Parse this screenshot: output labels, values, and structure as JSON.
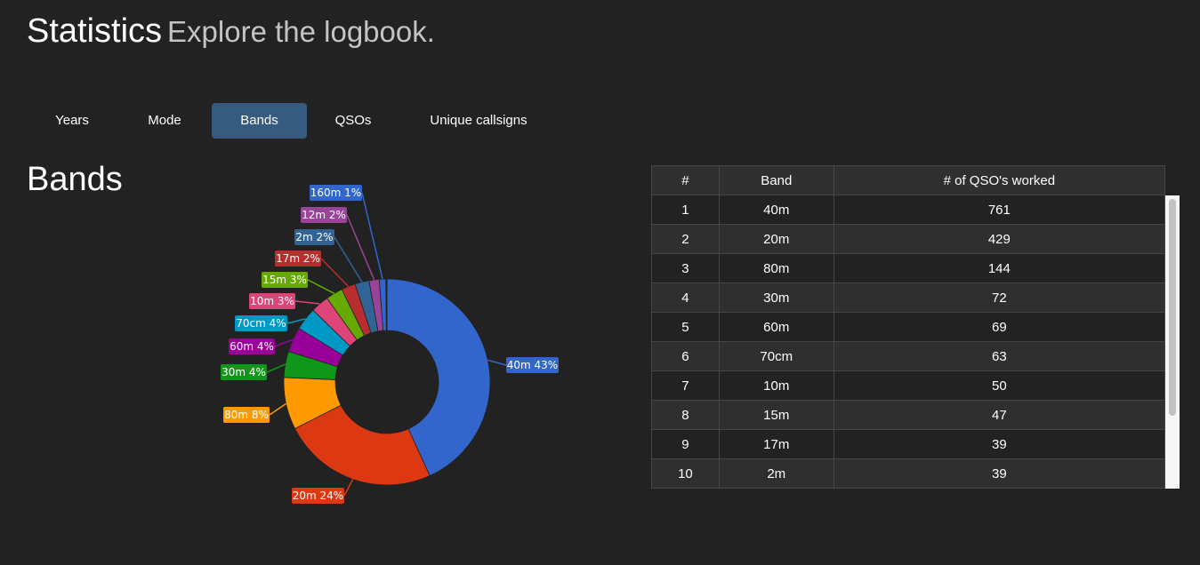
{
  "header": {
    "title": "Statistics",
    "subtitle": "Explore the logbook."
  },
  "tabs": [
    {
      "label": "Years",
      "active": false
    },
    {
      "label": "Mode",
      "active": false
    },
    {
      "label": "Bands",
      "active": true
    },
    {
      "label": "QSOs",
      "active": false
    },
    {
      "label": "Unique callsigns",
      "active": false
    }
  ],
  "section": {
    "title": "Bands"
  },
  "colors": {
    "accent": "#375a7f",
    "background": "#222222"
  },
  "table": {
    "headers": [
      "#",
      "Band",
      "# of QSO's worked"
    ],
    "rows": [
      [
        "1",
        "40m",
        "761"
      ],
      [
        "2",
        "20m",
        "429"
      ],
      [
        "3",
        "80m",
        "144"
      ],
      [
        "4",
        "30m",
        "72"
      ],
      [
        "5",
        "60m",
        "69"
      ],
      [
        "6",
        "70cm",
        "63"
      ],
      [
        "7",
        "10m",
        "50"
      ],
      [
        "8",
        "15m",
        "47"
      ],
      [
        "9",
        "17m",
        "39"
      ],
      [
        "10",
        "2m",
        "39"
      ]
    ]
  },
  "chart_data": {
    "type": "pie",
    "style": "donut",
    "categories": [
      "40m",
      "20m",
      "80m",
      "30m",
      "60m",
      "70cm",
      "10m",
      "15m",
      "17m",
      "2m",
      "12m",
      "160m"
    ],
    "values": [
      761,
      429,
      144,
      72,
      69,
      63,
      50,
      47,
      39,
      39,
      28,
      18
    ],
    "percent_labels": [
      "40m 43%",
      "20m 24%",
      "80m 8%",
      "30m 4%",
      "60m 4%",
      "70cm 4%",
      "10m 3%",
      "15m 3%",
      "17m 2%",
      "2m 2%",
      "12m 2%",
      "160m 1%"
    ],
    "colors": [
      "#3366cc",
      "#dc3912",
      "#ff9900",
      "#109618",
      "#990099",
      "#0099c6",
      "#dd4477",
      "#66aa00",
      "#b82e2e",
      "#316395",
      "#994499",
      "#3366cc"
    ],
    "extra_small_slices": [
      {
        "color": "#dc3912",
        "value": 2
      },
      {
        "color": "#ff9900",
        "value": 1
      }
    ]
  }
}
